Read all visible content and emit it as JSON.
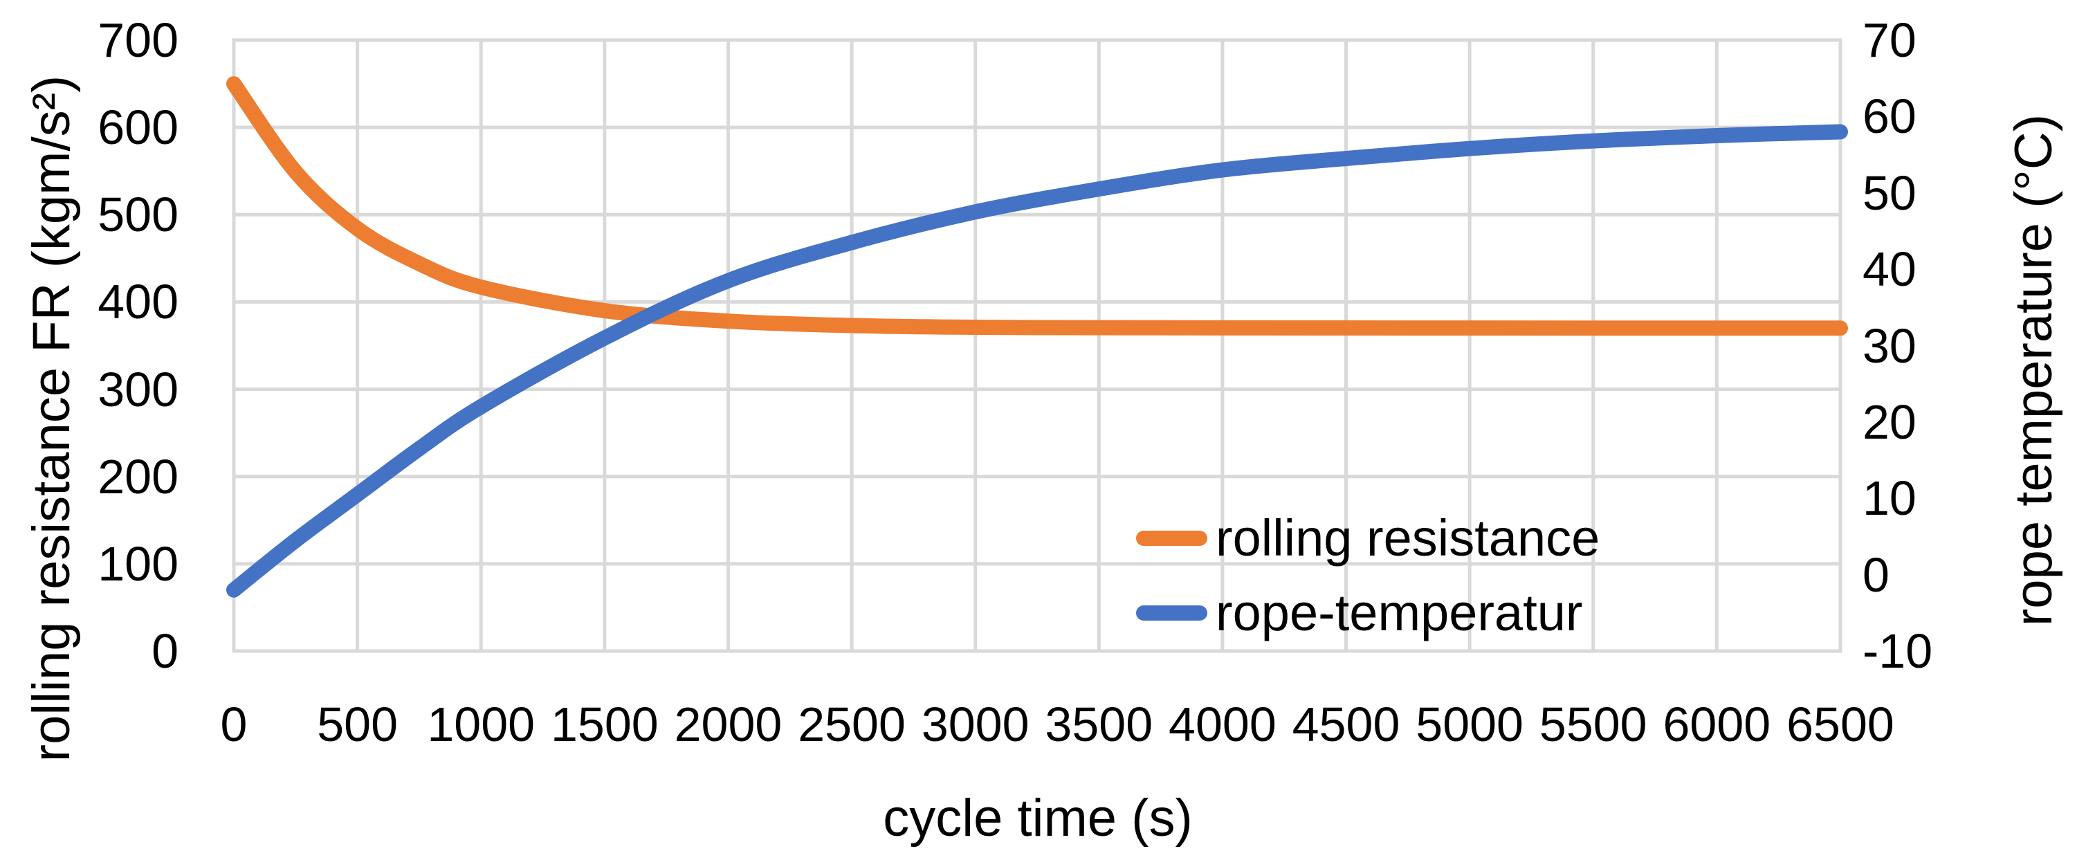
{
  "chart_data": {
    "type": "line",
    "xlabel": "cycle time (s)",
    "ylabel_left": "rolling resistance FR (kgm/s²)",
    "ylabel_right": "rope temperature (°C)",
    "x_axis": {
      "min": 0,
      "max": 6500,
      "tick_step": 500,
      "ticks": [
        0,
        500,
        1000,
        1500,
        2000,
        2500,
        3000,
        3500,
        4000,
        4500,
        5000,
        5500,
        6000,
        6500
      ]
    },
    "y_axis_left": {
      "min": 0,
      "max": 700,
      "tick_step": 100,
      "ticks": [
        0,
        100,
        200,
        300,
        400,
        500,
        600,
        700
      ]
    },
    "y_axis_right": {
      "min": -10,
      "max": 70,
      "tick_step": 10,
      "ticks": [
        -10,
        0,
        10,
        20,
        30,
        40,
        50,
        60,
        70
      ]
    },
    "grid": {
      "horizontal": "left-axis-steps",
      "vertical": "x-axis-steps",
      "color": "#D9D9D9"
    },
    "legend_position": "inside-bottom-right",
    "x": [
      0,
      250,
      500,
      750,
      1000,
      1500,
      2000,
      2500,
      3000,
      3500,
      4000,
      4500,
      5000,
      5500,
      6000,
      6500
    ],
    "series": [
      {
        "name": "rolling resistance",
        "axis": "left",
        "color": "#ED7D31",
        "values": [
          650,
          549,
          484,
          444,
          417,
          390,
          378,
          373,
          371,
          370.5,
          370.3,
          370.2,
          370.1,
          370,
          370,
          370
        ]
      },
      {
        "name": "rope-temperatur",
        "axis": "right",
        "color": "#4472C4",
        "values": [
          -2,
          4.5,
          10.5,
          16.5,
          22,
          31,
          38.5,
          43.5,
          47.5,
          50.5,
          53,
          54.5,
          55.8,
          56.8,
          57.5,
          58
        ]
      }
    ]
  }
}
